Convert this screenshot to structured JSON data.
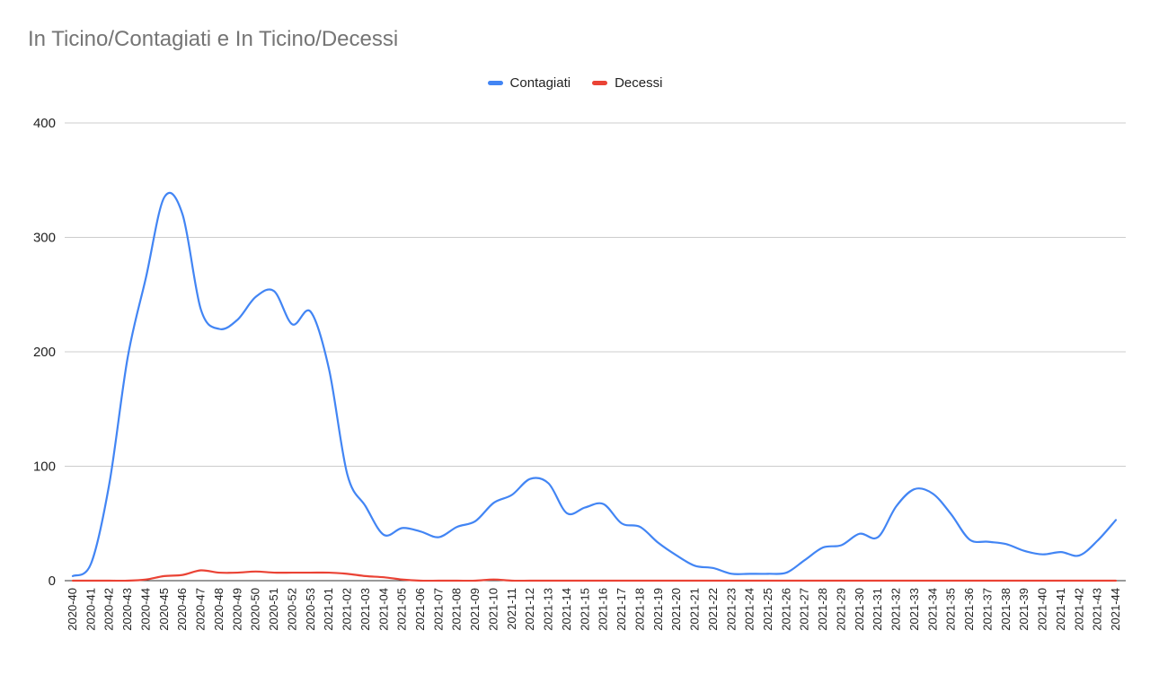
{
  "chart_data": {
    "type": "line",
    "title": "In Ticino/Contagiati e In Ticino/Decessi",
    "xlabel": "",
    "ylabel": "",
    "ylim": [
      0,
      400
    ],
    "yticks": [
      0,
      100,
      200,
      300,
      400
    ],
    "grid": true,
    "legend_position": "top-center",
    "categories": [
      "2020-40",
      "2020-41",
      "2020-42",
      "2020-43",
      "2020-44",
      "2020-45",
      "2020-46",
      "2020-47",
      "2020-48",
      "2020-49",
      "2020-50",
      "2020-51",
      "2020-52",
      "2020-53",
      "2021-01",
      "2021-02",
      "2021-03",
      "2021-04",
      "2021-05",
      "2021-06",
      "2021-07",
      "2021-08",
      "2021-09",
      "2021-10",
      "2021-11",
      "2021-12",
      "2021-13",
      "2021-14",
      "2021-15",
      "2021-16",
      "2021-17",
      "2021-18",
      "2021-19",
      "2021-20",
      "2021-21",
      "2021-22",
      "2021-23",
      "2021-24",
      "2021-25",
      "2021-26",
      "2021-27",
      "2021-28",
      "2021-29",
      "2021-30",
      "2021-31",
      "2021-32",
      "2021-33",
      "2021-34",
      "2021-35",
      "2021-36",
      "2021-37",
      "2021-38",
      "2021-39",
      "2021-40",
      "2021-41",
      "2021-42",
      "2021-43",
      "2021-44"
    ],
    "series": [
      {
        "name": "Contagiati",
        "color": "#4285f4",
        "values": [
          4,
          15,
          85,
          195,
          265,
          335,
          320,
          237,
          220,
          228,
          248,
          253,
          224,
          235,
          185,
          93,
          65,
          40,
          46,
          43,
          38,
          47,
          52,
          68,
          75,
          89,
          85,
          59,
          64,
          67,
          50,
          47,
          33,
          22,
          13,
          11,
          6,
          6,
          6,
          7,
          18,
          29,
          31,
          41,
          38,
          65,
          80,
          76,
          58,
          36,
          34,
          32,
          26,
          23,
          25,
          22,
          35,
          53
        ]
      },
      {
        "name": "Decessi",
        "color": "#ea4335",
        "values": [
          0,
          0,
          0,
          0,
          1,
          4,
          5,
          9,
          7,
          7,
          8,
          7,
          7,
          7,
          7,
          6,
          4,
          3,
          1,
          0,
          0,
          0,
          0,
          1,
          0,
          0,
          0,
          0,
          0,
          0,
          0,
          0,
          0,
          0,
          0,
          0,
          0,
          0,
          0,
          0,
          0,
          0,
          0,
          0,
          0,
          0,
          0,
          0,
          0,
          0,
          0,
          0,
          0,
          0,
          0,
          0,
          0,
          0
        ]
      }
    ]
  }
}
